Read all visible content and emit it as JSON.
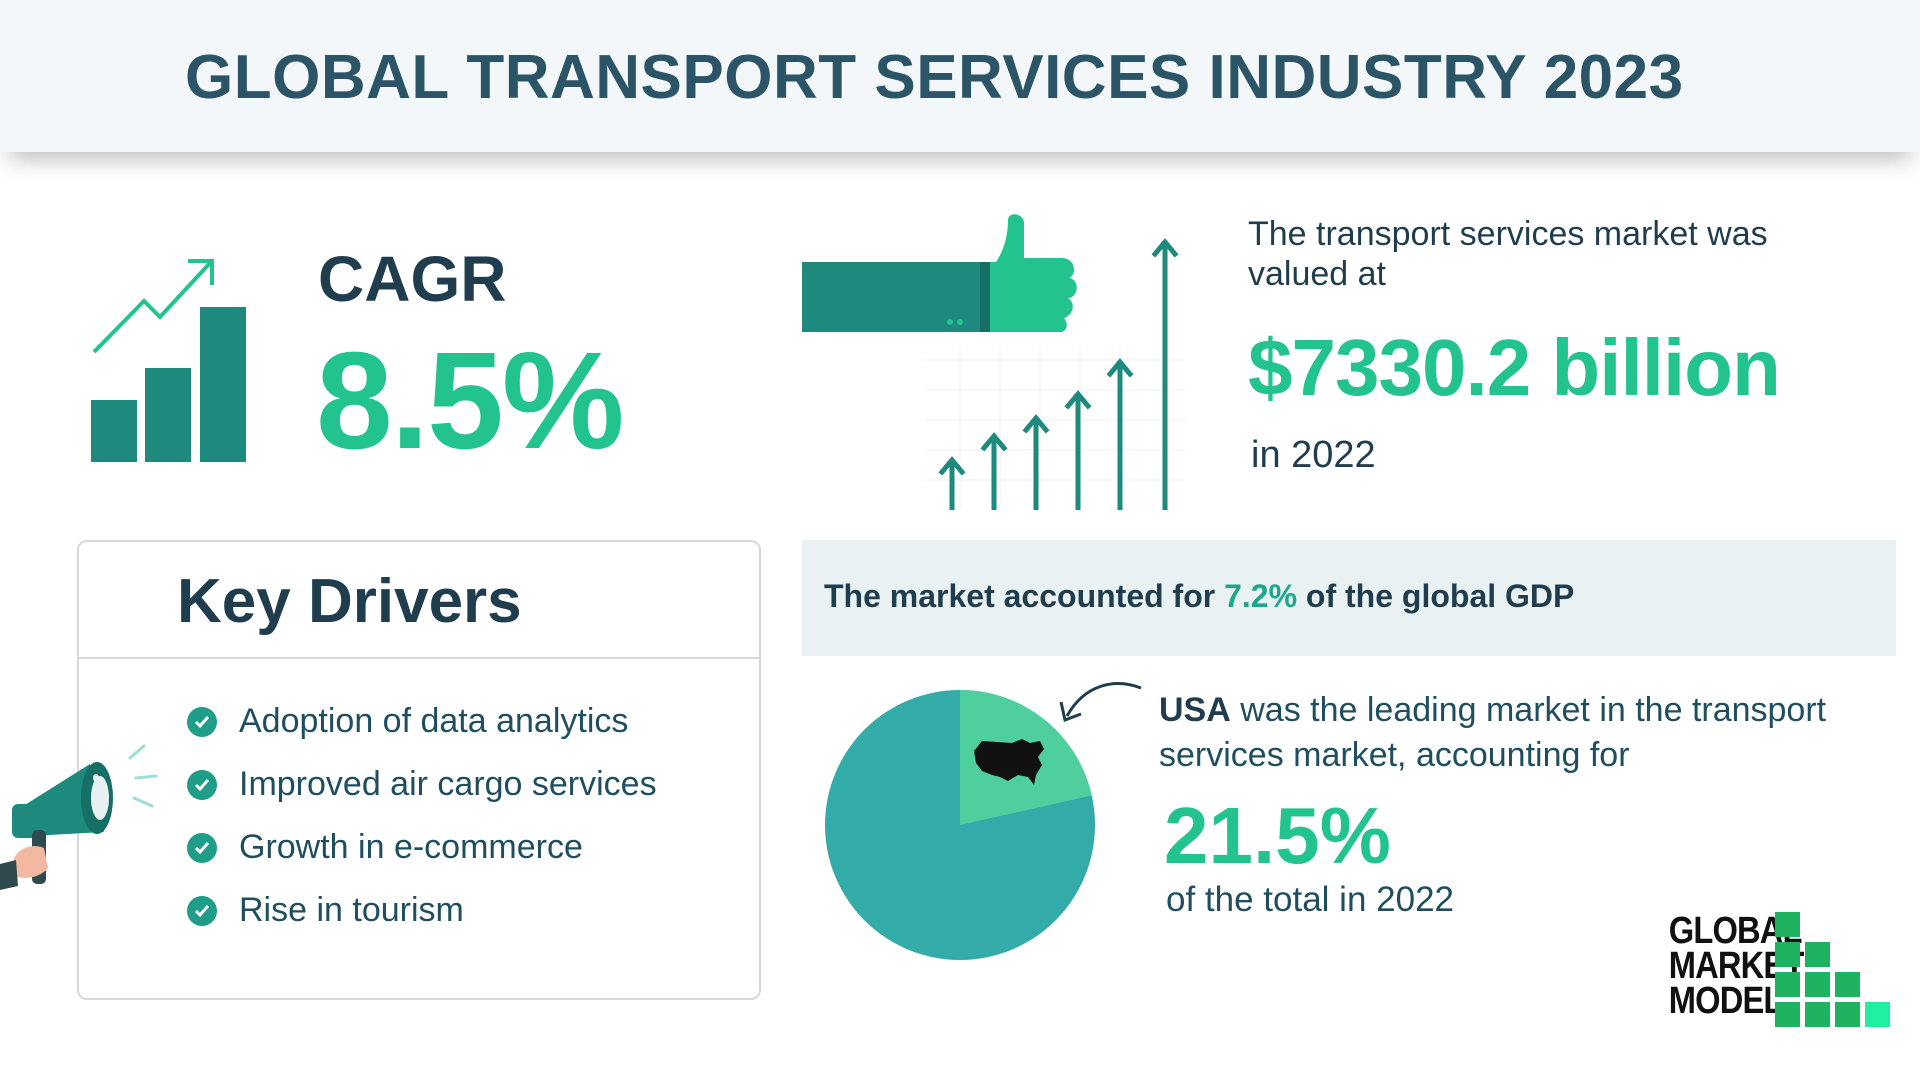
{
  "header": {
    "title": "GLOBAL TRANSPORT SERVICES INDUSTRY 2023"
  },
  "cagr": {
    "label": "CAGR",
    "value": "8.5%"
  },
  "market": {
    "description": "The transport services  market was valued at",
    "value": "$7330.2 billion",
    "year_text": "in 2022"
  },
  "drivers": {
    "title": "Key Drivers",
    "items": [
      "Adoption of data analytics",
      "Improved air cargo services",
      "Growth in e-commerce",
      "Rise in tourism"
    ]
  },
  "gdp": {
    "prefix": "The market accounted for ",
    "value": "7.2%",
    "suffix": " of the global GDP"
  },
  "leading": {
    "country": "USA",
    "text": " was the leading market in the transport services market, accounting for",
    "value": "21.5%",
    "year_text": "of the total in 2022",
    "share_fraction": 0.215
  },
  "logo": {
    "line1": "GLOBAL",
    "line2": "MARKET",
    "line3": "MODEL"
  },
  "colors": {
    "accent_green": "#22c38e",
    "teal_dark": "#1e8a7e",
    "teal_pie": "#33aba8",
    "pie_slice": "#4fcf9d",
    "title_text": "#2b5566"
  },
  "icons": [
    "growth-chart-icon",
    "thumbs-up-icon",
    "megaphone-icon",
    "check-icon",
    "usa-map-icon",
    "arrow-icon"
  ]
}
